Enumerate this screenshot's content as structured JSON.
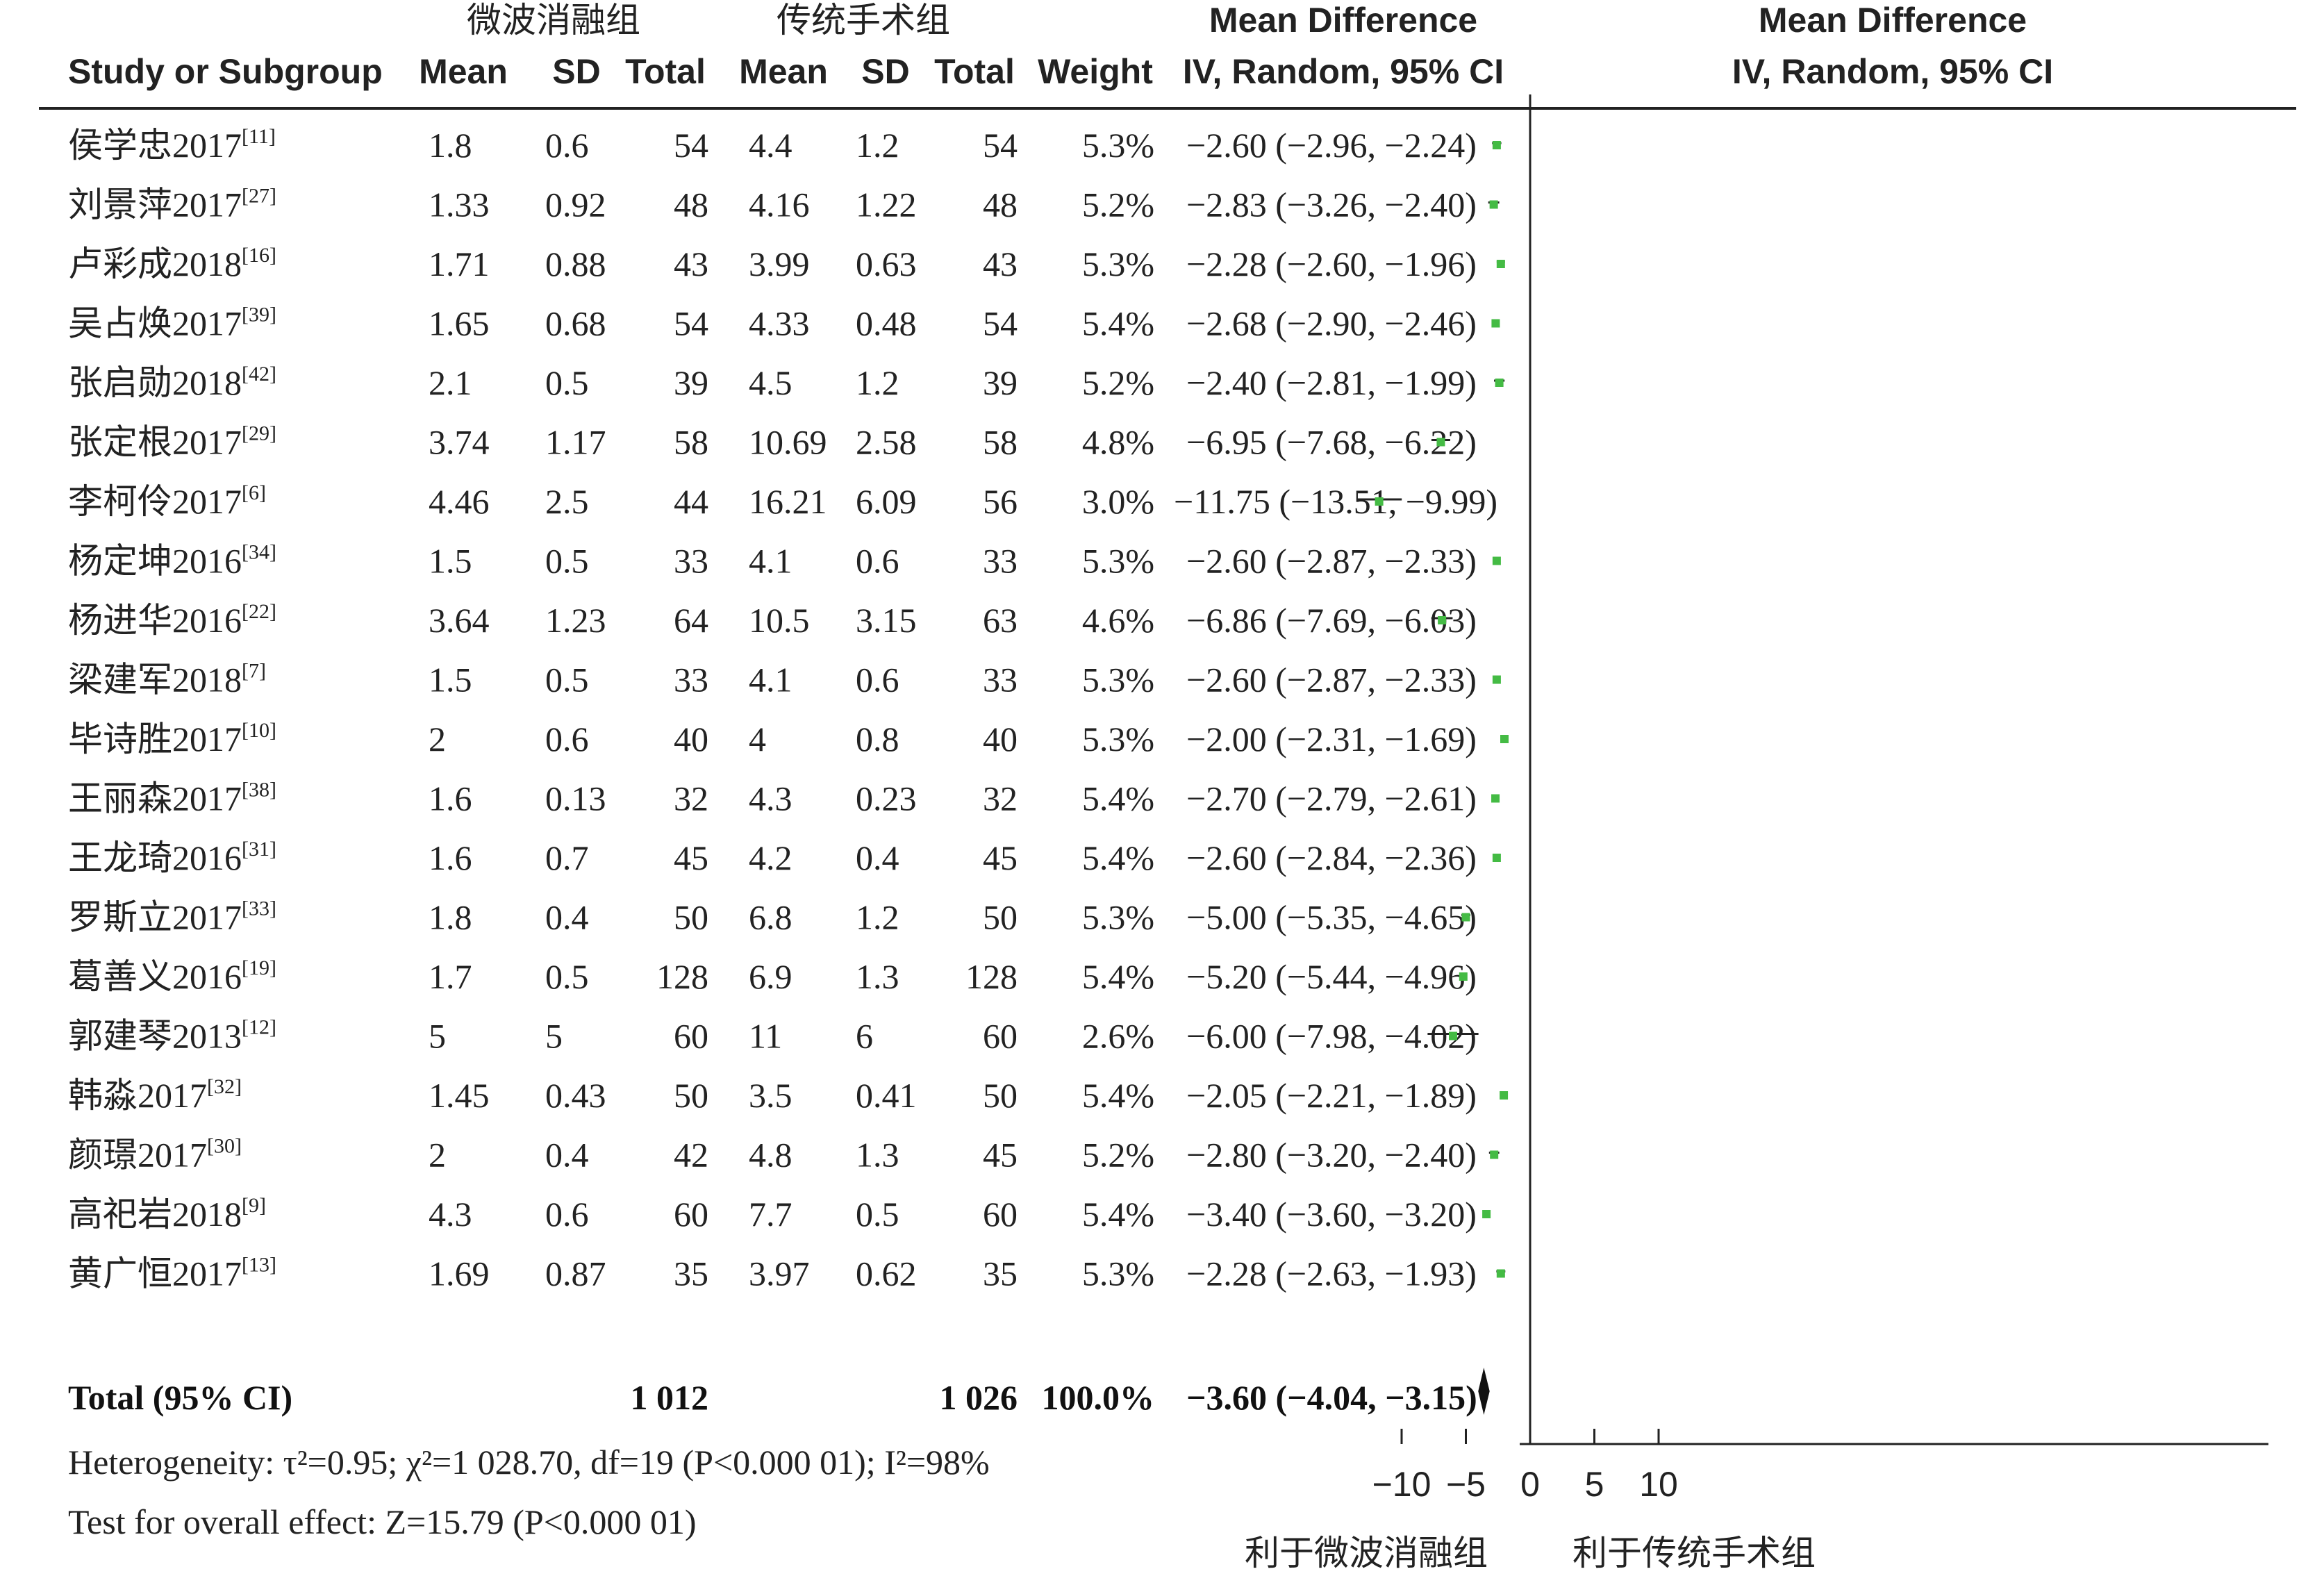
{
  "headers": {
    "study": "Study or Subgroup",
    "group1_title": "微波消融组",
    "group2_title": "传统手术组",
    "mean": "Mean",
    "sd": "SD",
    "total": "Total",
    "weight": "Weight",
    "effect_line1": "Mean Difference",
    "effect_line2": "IV, Random, 95% CI",
    "plot_line1": "Mean Difference",
    "plot_line2": "IV, Random, 95% CI"
  },
  "colors": {
    "point": "#44bb44",
    "text": "#222222",
    "diamond": "#111111"
  },
  "summary": {
    "label": "Total (95% CI)",
    "total1": "1 012",
    "total2": "1 026",
    "weight": "100.0%",
    "ci_text": "−3.60 (−4.04, −3.15)",
    "heterogeneity": "Heterogeneity: τ²=0.95; χ²=1 028.70, df=19 (P<0.000 01); I²=98%",
    "overall": "Test for overall effect: Z=15.79 (P<0.000 01)"
  },
  "chart_data": {
    "type": "forest",
    "xlim": [
      -14,
      15
    ],
    "xticks": [
      -10,
      -5,
      0,
      5,
      10
    ],
    "xtick_labels": [
      "−10",
      "−5",
      "0",
      "5",
      "10"
    ],
    "favours_left": "利于微波消融组",
    "favours_right": "利于传统手术组",
    "pooled": {
      "md": -3.6,
      "lo": -4.04,
      "hi": -3.15
    },
    "studies": [
      {
        "name": "侯学忠2017",
        "ref": "[11]",
        "m1": "1.8",
        "sd1": "0.6",
        "n1": "54",
        "m2": "4.4",
        "sd2": "1.2",
        "n2": "54",
        "weight": "5.3%",
        "ci_text": "−2.60 (−2.96, −2.24)",
        "md": -2.6,
        "lo": -2.96,
        "hi": -2.24
      },
      {
        "name": "刘景萍2017",
        "ref": "[27]",
        "m1": "1.33",
        "sd1": "0.92",
        "n1": "48",
        "m2": "4.16",
        "sd2": "1.22",
        "n2": "48",
        "weight": "5.2%",
        "ci_text": "−2.83 (−3.26, −2.40)",
        "md": -2.83,
        "lo": -3.26,
        "hi": -2.4
      },
      {
        "name": "卢彩成2018",
        "ref": "[16]",
        "m1": "1.71",
        "sd1": "0.88",
        "n1": "43",
        "m2": "3.99",
        "sd2": "0.63",
        "n2": "43",
        "weight": "5.3%",
        "ci_text": "−2.28 (−2.60, −1.96)",
        "md": -2.28,
        "lo": -2.6,
        "hi": -1.96
      },
      {
        "name": "吴占焕2017",
        "ref": "[39]",
        "m1": "1.65",
        "sd1": "0.68",
        "n1": "54",
        "m2": "4.33",
        "sd2": "0.48",
        "n2": "54",
        "weight": "5.4%",
        "ci_text": "−2.68 (−2.90, −2.46)",
        "md": -2.68,
        "lo": -2.9,
        "hi": -2.46
      },
      {
        "name": "张启勋2018",
        "ref": "[42]",
        "m1": "2.1",
        "sd1": "0.5",
        "n1": "39",
        "m2": "4.5",
        "sd2": "1.2",
        "n2": "39",
        "weight": "5.2%",
        "ci_text": "−2.40 (−2.81, −1.99)",
        "md": -2.4,
        "lo": -2.81,
        "hi": -1.99
      },
      {
        "name": "张定根2017",
        "ref": "[29]",
        "m1": "3.74",
        "sd1": "1.17",
        "n1": "58",
        "m2": "10.69",
        "sd2": "2.58",
        "n2": "58",
        "weight": "4.8%",
        "ci_text": "−6.95 (−7.68, −6.22)",
        "md": -6.95,
        "lo": -7.68,
        "hi": -6.22
      },
      {
        "name": "李柯伶2017",
        "ref": "[6]",
        "m1": "4.46",
        "sd1": "2.5",
        "n1": "44",
        "m2": "16.21",
        "sd2": "6.09",
        "n2": "56",
        "weight": "3.0%",
        "ci_text": "−11.75 (−13.51, −9.99)",
        "md": -11.75,
        "lo": -13.51,
        "hi": -9.99
      },
      {
        "name": "杨定坤2016",
        "ref": "[34]",
        "m1": "1.5",
        "sd1": "0.5",
        "n1": "33",
        "m2": "4.1",
        "sd2": "0.6",
        "n2": "33",
        "weight": "5.3%",
        "ci_text": "−2.60 (−2.87, −2.33)",
        "md": -2.6,
        "lo": -2.87,
        "hi": -2.33
      },
      {
        "name": "杨进华2016",
        "ref": "[22]",
        "m1": "3.64",
        "sd1": "1.23",
        "n1": "64",
        "m2": "10.5",
        "sd2": "3.15",
        "n2": "63",
        "weight": "4.6%",
        "ci_text": "−6.86 (−7.69, −6.03)",
        "md": -6.86,
        "lo": -7.69,
        "hi": -6.03
      },
      {
        "name": "梁建军2018",
        "ref": "[7]",
        "m1": "1.5",
        "sd1": "0.5",
        "n1": "33",
        "m2": "4.1",
        "sd2": "0.6",
        "n2": "33",
        "weight": "5.3%",
        "ci_text": "−2.60 (−2.87, −2.33)",
        "md": -2.6,
        "lo": -2.87,
        "hi": -2.33
      },
      {
        "name": "毕诗胜2017",
        "ref": "[10]",
        "m1": "2",
        "sd1": "0.6",
        "n1": "40",
        "m2": "4",
        "sd2": "0.8",
        "n2": "40",
        "weight": "5.3%",
        "ci_text": "−2.00 (−2.31, −1.69)",
        "md": -2.0,
        "lo": -2.31,
        "hi": -1.69
      },
      {
        "name": "王丽森2017",
        "ref": "[38]",
        "m1": "1.6",
        "sd1": "0.13",
        "n1": "32",
        "m2": "4.3",
        "sd2": "0.23",
        "n2": "32",
        "weight": "5.4%",
        "ci_text": "−2.70 (−2.79, −2.61)",
        "md": -2.7,
        "lo": -2.79,
        "hi": -2.61
      },
      {
        "name": "王龙琦2016",
        "ref": "[31]",
        "m1": "1.6",
        "sd1": "0.7",
        "n1": "45",
        "m2": "4.2",
        "sd2": "0.4",
        "n2": "45",
        "weight": "5.4%",
        "ci_text": "−2.60 (−2.84, −2.36)",
        "md": -2.6,
        "lo": -2.84,
        "hi": -2.36
      },
      {
        "name": "罗斯立2017",
        "ref": "[33]",
        "m1": "1.8",
        "sd1": "0.4",
        "n1": "50",
        "m2": "6.8",
        "sd2": "1.2",
        "n2": "50",
        "weight": "5.3%",
        "ci_text": "−5.00 (−5.35, −4.65)",
        "md": -5.0,
        "lo": -5.35,
        "hi": -4.65
      },
      {
        "name": "葛善义2016",
        "ref": "[19]",
        "m1": "1.7",
        "sd1": "0.5",
        "n1": "128",
        "m2": "6.9",
        "sd2": "1.3",
        "n2": "128",
        "weight": "5.4%",
        "ci_text": "−5.20 (−5.44, −4.96)",
        "md": -5.2,
        "lo": -5.44,
        "hi": -4.96
      },
      {
        "name": "郭建琴2013",
        "ref": "[12]",
        "m1": "5",
        "sd1": "5",
        "n1": "60",
        "m2": "11",
        "sd2": "6",
        "n2": "60",
        "weight": "2.6%",
        "ci_text": "−6.00 (−7.98, −4.02)",
        "md": -6.0,
        "lo": -7.98,
        "hi": -4.02
      },
      {
        "name": "韩淼2017",
        "ref": "[32]",
        "m1": "1.45",
        "sd1": "0.43",
        "n1": "50",
        "m2": "3.5",
        "sd2": "0.41",
        "n2": "50",
        "weight": "5.4%",
        "ci_text": "−2.05 (−2.21, −1.89)",
        "md": -2.05,
        "lo": -2.21,
        "hi": -1.89
      },
      {
        "name": "颜璟2017",
        "ref": "[30]",
        "m1": "2",
        "sd1": "0.4",
        "n1": "42",
        "m2": "4.8",
        "sd2": "1.3",
        "n2": "45",
        "weight": "5.2%",
        "ci_text": "−2.80 (−3.20, −2.40)",
        "md": -2.8,
        "lo": -3.2,
        "hi": -2.4
      },
      {
        "name": "高祀岩2018",
        "ref": "[9]",
        "m1": "4.3",
        "sd1": "0.6",
        "n1": "60",
        "m2": "7.7",
        "sd2": "0.5",
        "n2": "60",
        "weight": "5.4%",
        "ci_text": "−3.40 (−3.60, −3.20)",
        "md": -3.4,
        "lo": -3.6,
        "hi": -3.2
      },
      {
        "name": "黄广恒2017",
        "ref": "[13]",
        "m1": "1.69",
        "sd1": "0.87",
        "n1": "35",
        "m2": "3.97",
        "sd2": "0.62",
        "n2": "35",
        "weight": "5.3%",
        "ci_text": "−2.28 (−2.63, −1.93)",
        "md": -2.28,
        "lo": -2.63,
        "hi": -1.93
      }
    ]
  }
}
